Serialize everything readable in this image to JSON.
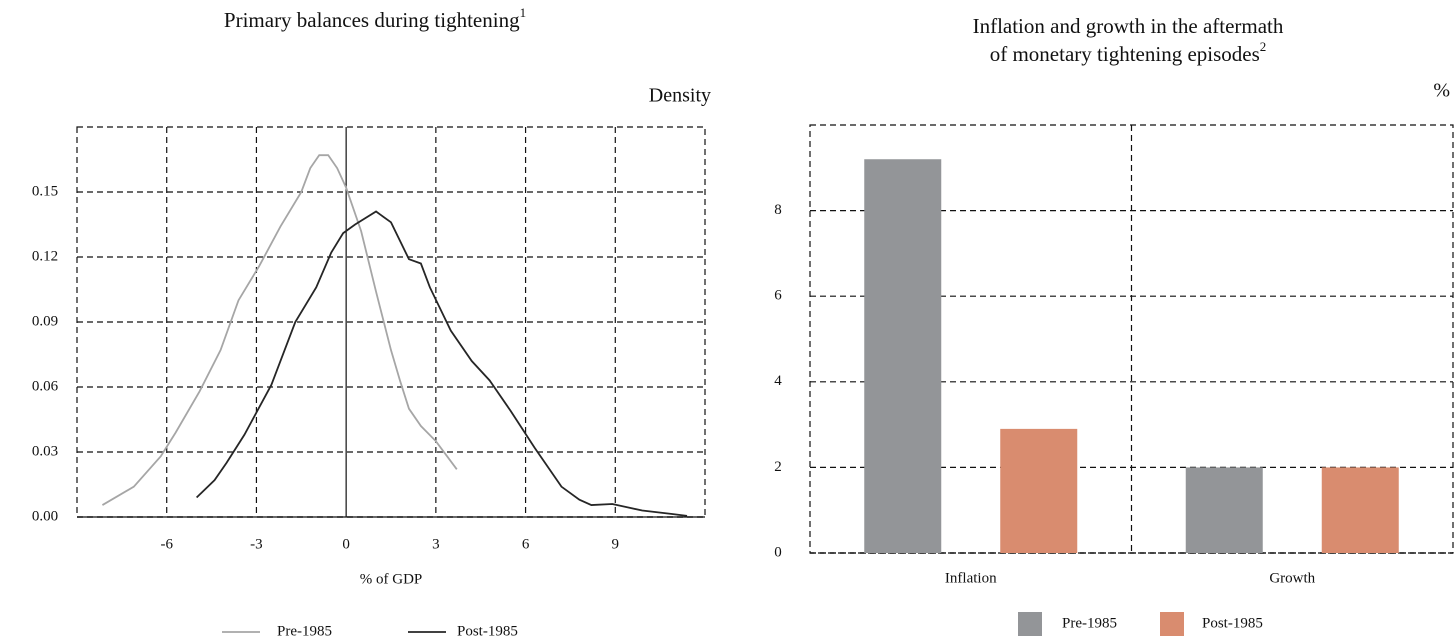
{
  "chart_data": [
    {
      "type": "line",
      "title": "Primary balances during tightening",
      "title_note": "1",
      "y_unit": "Density",
      "xlabel": "% of GDP",
      "xlim": [
        -9,
        12
      ],
      "xticks": [
        -6,
        -3,
        0,
        3,
        6,
        9
      ],
      "ylim": [
        0,
        0.18
      ],
      "yticks": [
        {
          "value": 0,
          "label": "0.00"
        },
        0.03,
        0.06,
        0.09,
        0.12,
        0.15
      ],
      "grid": true,
      "series": [
        {
          "name": "Pre-1985",
          "color": "#a6a6a6",
          "x": [
            -8.15,
            -7.1,
            -6.2,
            -5.7,
            -4.9,
            -4.2,
            -3.6,
            -2.9,
            -2.2,
            -1.5,
            -1.2,
            -0.9,
            -0.6,
            -0.3,
            0,
            0.5,
            1,
            1.5,
            1.8,
            2.1,
            2.5,
            3,
            3.7
          ],
          "values": [
            0.0055,
            0.014,
            0.028,
            0.039,
            0.058,
            0.077,
            0.1,
            0.116,
            0.134,
            0.15,
            0.161,
            0.167,
            0.167,
            0.161,
            0.152,
            0.132,
            0.104,
            0.077,
            0.063,
            0.05,
            0.042,
            0.035,
            0.022
          ]
        },
        {
          "name": "Post-1985",
          "color": "#262626",
          "x": [
            -5,
            -4.4,
            -4,
            -3.4,
            -2.5,
            -1.7,
            -1,
            -0.5,
            -0.1,
            0.3,
            1,
            1.5,
            2.1,
            2.5,
            2.8,
            3.5,
            4.2,
            4.8,
            5.5,
            6.3,
            7.2,
            7.8,
            8.2,
            8.9,
            9.9,
            10.9,
            11.4
          ],
          "values": [
            0.009,
            0.017,
            0.025,
            0.038,
            0.061,
            0.09,
            0.106,
            0.122,
            0.131,
            0.135,
            0.141,
            0.136,
            0.119,
            0.117,
            0.106,
            0.086,
            0.072,
            0.063,
            0.049,
            0.032,
            0.014,
            0.008,
            0.0055,
            0.006,
            0.003,
            0.0014,
            0.0005
          ]
        }
      ]
    },
    {
      "type": "bar",
      "title": "Inflation and growth in the aftermath",
      "title_line2": "of monetary tightening episodes",
      "title_note": "2",
      "y_unit": "%",
      "categories": [
        "Inflation",
        "Growth"
      ],
      "ylim": [
        0,
        10
      ],
      "yticks": [
        0,
        2,
        4,
        6,
        8
      ],
      "grid": true,
      "series": [
        {
          "name": "Pre-1985",
          "color": "#939598",
          "values": [
            9.2,
            2.0
          ]
        },
        {
          "name": "Post-1985",
          "color": "#d98c6f",
          "values": [
            2.9,
            2.0
          ]
        }
      ]
    }
  ]
}
